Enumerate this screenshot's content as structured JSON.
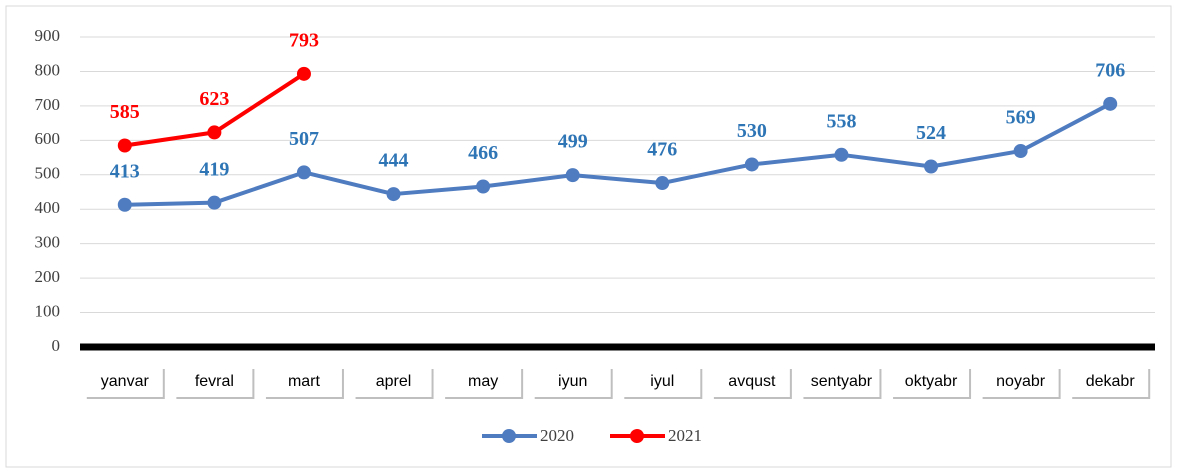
{
  "chart_data": {
    "type": "line",
    "categories": [
      "yanvar",
      "fevral",
      "mart",
      "aprel",
      "may",
      "iyun",
      "iyul",
      "avqust",
      "sentyabr",
      "oktyabr",
      "noyabr",
      "dekabr"
    ],
    "series": [
      {
        "name": "2020",
        "color": "#4f7cc0",
        "label_color": "#2e75b6",
        "values": [
          413,
          419,
          507,
          444,
          466,
          499,
          476,
          530,
          558,
          524,
          569,
          706
        ]
      },
      {
        "name": "2021",
        "color": "#ff0000",
        "label_color": "#ff0000",
        "values": [
          585,
          623,
          793,
          null,
          null,
          null,
          null,
          null,
          null,
          null,
          null,
          null
        ]
      }
    ],
    "ylim": [
      0,
      900
    ],
    "yticks": [
      0,
      100,
      200,
      300,
      400,
      500,
      600,
      700,
      800,
      900
    ],
    "grid": true,
    "legend": "bottom"
  }
}
